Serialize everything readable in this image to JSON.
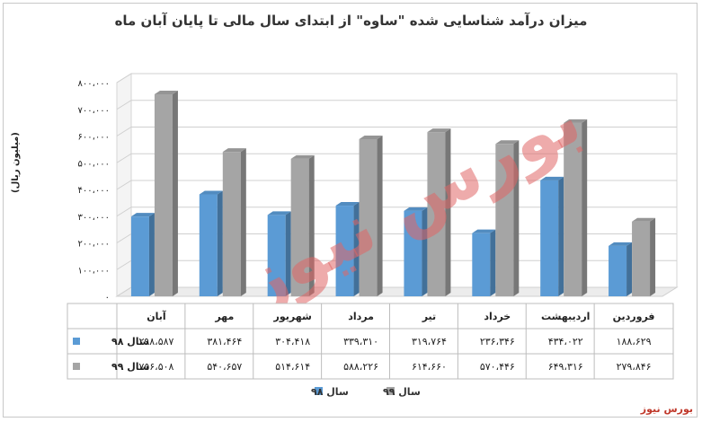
{
  "chart_data": {
    "type": "bar",
    "title": "میزان درآمد شناسایی شده \"ساوه\" از ابتدای سال مالی تا پایان آبان ماه",
    "ylabel": "(میلیون ریال)",
    "ylim": [
      0,
      800000
    ],
    "yticks": [
      "۰",
      "۱۰۰،۰۰۰",
      "۲۰۰،۰۰۰",
      "۳۰۰،۰۰۰",
      "۴۰۰،۰۰۰",
      "۵۰۰،۰۰۰",
      "۶۰۰،۰۰۰",
      "۷۰۰،۰۰۰",
      "۸۰۰،۰۰۰"
    ],
    "categories": [
      "فروردین",
      "اردیبهشت",
      "خرداد",
      "تیر",
      "مرداد",
      "شهریور",
      "مهر",
      "آبان"
    ],
    "series": [
      {
        "name": "سال ۹۸",
        "color": "#5b9bd5",
        "values": [
          188629,
          434022,
          236346,
          319764,
          339310,
          304418,
          381464,
          298587
        ],
        "labels": [
          "۱۸۸،۶۲۹",
          "۴۳۴،۰۲۲",
          "۲۳۶،۳۴۶",
          "۳۱۹،۷۶۴",
          "۳۳۹،۳۱۰",
          "۳۰۴،۴۱۸",
          "۳۸۱،۴۶۴",
          "۲۹۸،۵۸۷"
        ]
      },
      {
        "name": "سال ۹۹",
        "color": "#a5a5a5",
        "values": [
          279846,
          649316,
          570446,
          614660,
          588226,
          514614,
          540657,
          756508
        ],
        "labels": [
          "۲۷۹،۸۴۶",
          "۶۴۹،۳۱۶",
          "۵۷۰،۴۴۶",
          "۶۱۴،۶۶۰",
          "۵۸۸،۲۲۶",
          "۵۱۴،۶۱۴",
          "۵۴۰،۶۵۷",
          "۷۵۶،۵۰۸"
        ]
      }
    ],
    "legend": "bottom",
    "grid": true
  },
  "brand": "بورس نیوز",
  "watermark": "بورس نیوز"
}
